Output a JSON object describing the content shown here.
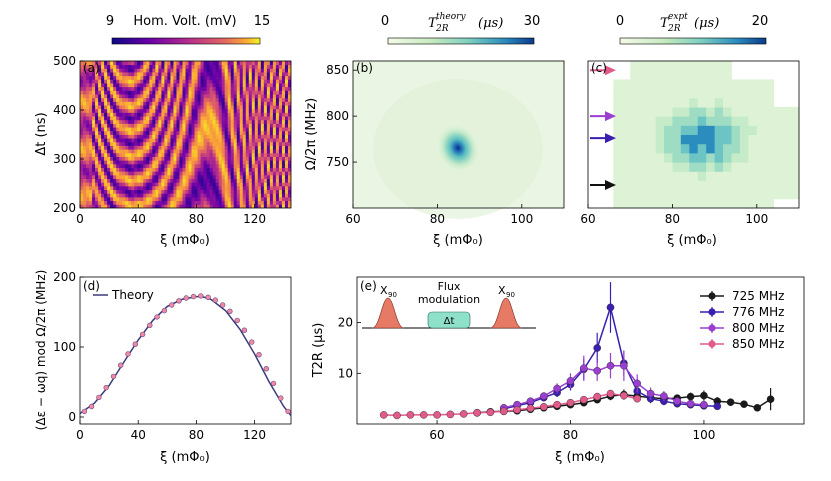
{
  "chart_data": [
    {
      "panel": "(a)",
      "type": "heatmap",
      "colorbar": {
        "label": "Hom. Volt. (mV)",
        "min": 9,
        "max": 15,
        "colormap": "plasma"
      },
      "xlabel": "ξ (mΦ0)",
      "ylabel": "Δt (ns)",
      "xlim": [
        0,
        145
      ],
      "ylim": [
        200,
        500
      ],
      "xticks": [
        0,
        40,
        80,
        120
      ],
      "yticks": [
        200,
        300,
        400,
        500
      ],
      "description_values": {
        "pattern": "oscillating fringes vs delay"
      }
    },
    {
      "panel": "(b)",
      "type": "heatmap",
      "colorbar": {
        "label": "T2R theory (μs)",
        "min": 0,
        "max": 30,
        "colormap": "green-blue"
      },
      "xlabel": "ξ (mΦ0)",
      "ylabel": "Ω/2π (MHz)",
      "xlim": [
        60,
        110
      ],
      "ylim": [
        700,
        860
      ],
      "xticks": [
        60,
        80,
        100
      ],
      "yticks": [
        750,
        800,
        850
      ],
      "peak": {
        "x": 84.5,
        "y": 770,
        "value": 30
      }
    },
    {
      "panel": "(c)",
      "type": "heatmap",
      "colorbar": {
        "label": "T2R expt (μs)",
        "min": 0,
        "max": 20,
        "colormap": "green-blue"
      },
      "xlabel": "ξ (mΦ0)",
      "xlim": [
        60,
        110
      ],
      "ylim": [
        700,
        860
      ],
      "xticks": [
        60,
        80,
        100
      ],
      "arrows": [
        {
          "y": 850,
          "color": "#e05a8a"
        },
        {
          "y": 800,
          "color": "#9b3fd0"
        },
        {
          "y": 776,
          "color": "#3a1fb0"
        },
        {
          "y": 725,
          "color": "#111111"
        }
      ]
    },
    {
      "panel": "(d)",
      "type": "line",
      "xlabel": "ξ (mΦ0)",
      "ylabel": "(Δε − ωq) mod Ω/2π (MHz)",
      "xlim": [
        0,
        145
      ],
      "ylim": [
        -10,
        200
      ],
      "xticks": [
        0,
        40,
        80,
        120
      ],
      "yticks": [
        0,
        100,
        200
      ],
      "legend": "Theory",
      "theory": {
        "x": [
          0,
          10,
          20,
          30,
          40,
          50,
          60,
          70,
          80,
          84,
          90,
          100,
          110,
          120,
          130,
          140,
          145
        ],
        "y": [
          5,
          20,
          45,
          78,
          110,
          138,
          158,
          168,
          172,
          172,
          168,
          152,
          125,
          90,
          50,
          15,
          2
        ]
      },
      "points": {
        "x": [
          3,
          8,
          13,
          18,
          23,
          28,
          33,
          38,
          43,
          48,
          53,
          58,
          63,
          68,
          73,
          78,
          83,
          88,
          93,
          98,
          103,
          108,
          113,
          118,
          123,
          128,
          133,
          138,
          143
        ],
        "y": [
          8,
          15,
          28,
          42,
          58,
          74,
          90,
          104,
          118,
          131,
          143,
          152,
          160,
          166,
          170,
          172,
          173,
          171,
          167,
          160,
          151,
          138,
          124,
          107,
          89,
          69,
          48,
          27,
          8
        ]
      }
    },
    {
      "panel": "(e)",
      "type": "line",
      "xlabel": "ξ (mΦ0)",
      "ylabel": "T2R (μs)",
      "xlim": [
        48,
        115
      ],
      "ylim": [
        0,
        29
      ],
      "xticks": [
        60,
        80,
        100
      ],
      "yticks": [
        10,
        20
      ],
      "inset": {
        "pulse1": "X90",
        "middle": "Flux modulation",
        "delay": "Δt",
        "pulse2": "X90"
      },
      "series": [
        {
          "name": "725 MHz",
          "color": "#1a1a1a",
          "x": [
            66,
            68,
            70,
            72,
            74,
            76,
            78,
            80,
            82,
            84,
            86,
            88,
            90,
            92,
            94,
            96,
            98,
            100,
            102,
            104,
            106,
            108,
            110
          ],
          "y": [
            2.2,
            2.4,
            2.5,
            2.6,
            2.9,
            3.2,
            3.5,
            3.8,
            4.2,
            4.8,
            5.5,
            5.8,
            5.5,
            5.2,
            5.0,
            5.1,
            5.4,
            5.6,
            4.5,
            4.3,
            3.9,
            3.2,
            4.9
          ],
          "err": [
            0.3,
            0.3,
            0.3,
            0.3,
            0.3,
            0.4,
            0.4,
            0.4,
            0.5,
            0.5,
            0.8,
            1.0,
            0.8,
            0.7,
            0.6,
            0.6,
            0.8,
            1.0,
            0.8,
            0.7,
            0.6,
            0.6,
            2.2
          ]
        },
        {
          "name": "776 MHz",
          "color": "#3a1fb0",
          "x": [
            70,
            72,
            74,
            76,
            78,
            80,
            82,
            84,
            86,
            88,
            90,
            92,
            94,
            96,
            98,
            100,
            102
          ],
          "y": [
            3.0,
            3.6,
            4.2,
            5.2,
            6.2,
            7.8,
            10.8,
            15.0,
            23.0,
            12.0,
            6.5,
            5.0,
            4.5,
            4.0,
            3.8,
            3.6,
            3.5
          ],
          "err": [
            0.4,
            0.5,
            0.6,
            0.7,
            0.9,
            1.2,
            2.0,
            3.0,
            5.0,
            2.5,
            1.2,
            0.9,
            0.8,
            0.7,
            0.6,
            0.6,
            0.6
          ]
        },
        {
          "name": "800 MHz",
          "color": "#9b3fd0",
          "x": [
            70,
            72,
            74,
            76,
            78,
            80,
            82,
            84,
            86,
            88,
            90,
            92,
            94,
            96,
            98,
            100
          ],
          "y": [
            3.2,
            3.8,
            4.5,
            5.5,
            7.0,
            8.5,
            11.0,
            10.5,
            11.5,
            11.5,
            8.0,
            6.0,
            5.5,
            4.5,
            4.0,
            3.8
          ],
          "err": [
            0.4,
            0.5,
            0.6,
            0.7,
            1.0,
            1.5,
            2.5,
            2.0,
            2.5,
            3.0,
            1.8,
            1.2,
            1.0,
            0.8,
            0.7,
            0.6
          ]
        },
        {
          "name": "850 MHz",
          "color": "#e05a8a",
          "x": [
            52,
            54,
            56,
            58,
            60,
            62,
            64,
            66,
            68,
            70,
            72,
            74,
            76,
            78,
            80,
            82,
            84,
            86,
            88,
            90
          ],
          "y": [
            1.8,
            1.7,
            1.8,
            1.8,
            1.8,
            1.9,
            2.0,
            2.2,
            2.3,
            2.5,
            2.8,
            3.1,
            3.4,
            3.8,
            4.2,
            4.8,
            5.4,
            6.0,
            5.6,
            5.0
          ],
          "err": [
            0.2,
            0.2,
            0.2,
            0.2,
            0.2,
            0.2,
            0.2,
            0.3,
            0.3,
            0.3,
            0.3,
            0.3,
            0.4,
            0.4,
            0.4,
            0.5,
            0.5,
            0.7,
            0.6,
            0.5
          ]
        }
      ]
    }
  ],
  "labels": {
    "a_cbar_min": "9",
    "a_cbar_label": "Hom. Volt. (mV)",
    "a_cbar_max": "15",
    "b_cbar_min": "0",
    "b_cbar_max": "30",
    "b_cbar_label_main": "T",
    "b_cbar_label_sub": "2R",
    "b_cbar_label_sup": "theory",
    "b_cbar_unit": "(μs)",
    "c_cbar_min": "0",
    "c_cbar_max": "20",
    "c_cbar_label_sup": "expt",
    "panel_a": "(a)",
    "panel_b": "(b)",
    "panel_c": "(c)",
    "panel_d": "(d)",
    "panel_e": "(e)",
    "xlabel": "ξ (mΦ₀)",
    "a_ylabel": "Δt (ns)",
    "b_ylabel": "Ω/2π (MHz)",
    "d_ylabel": "(Δε − ωq) mod Ω/2π (MHz)",
    "e_ylabel": "T2R (μs)",
    "theory_legend": "Theory",
    "inset_x90": "X",
    "inset_x90_sub": "90",
    "inset_flux1": "Flux",
    "inset_flux2": "modulation",
    "inset_dt": "Δt"
  }
}
